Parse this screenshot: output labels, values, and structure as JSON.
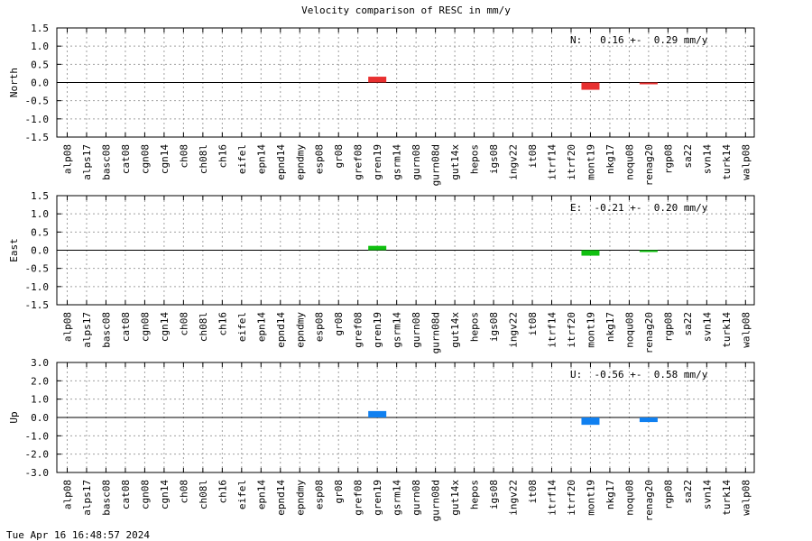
{
  "title": "Velocity comparison of RESC in mm/y",
  "footer": "Tue Apr 16 16:48:57 2024",
  "chart_data": [
    {
      "type": "bar",
      "ylabel": "North",
      "ylim": [
        -1.5,
        1.5
      ],
      "yticks": [
        "1.5",
        "1.0",
        "0.5",
        "0.0",
        "-0.5",
        "-1.0",
        "-1.5"
      ],
      "grid": true,
      "color": "#e83030",
      "annotation": "N:   0.16 +-  0.29 mm/y",
      "categories": [
        "alp08",
        "alps17",
        "basc08",
        "cat08",
        "cgn08",
        "cgn14",
        "ch08",
        "ch08l",
        "ch16",
        "eifel",
        "epn14",
        "epnd14",
        "epndmy",
        "esp08",
        "gr08",
        "gref08",
        "gren19",
        "gsrm14",
        "gurn08",
        "gurn08d",
        "gut14x",
        "hepos",
        "igs08",
        "ingv22",
        "it08",
        "itrf14",
        "itrf20",
        "mont19",
        "nkg17",
        "noqu08",
        "renag20",
        "rgp08",
        "sa22",
        "svn14",
        "turk14",
        "walp08"
      ],
      "values": {
        "gren19": 0.16,
        "mont19": -0.2,
        "renag20": -0.02
      }
    },
    {
      "type": "bar",
      "ylabel": "East",
      "ylim": [
        -1.5,
        1.5
      ],
      "yticks": [
        "1.5",
        "1.0",
        "0.5",
        "0.0",
        "-0.5",
        "-1.0",
        "-1.5"
      ],
      "grid": true,
      "color": "#10c010",
      "annotation": "E:  -0.21 +-  0.20 mm/y",
      "categories": [
        "alp08",
        "alps17",
        "basc08",
        "cat08",
        "cgn08",
        "cgn14",
        "ch08",
        "ch08l",
        "ch16",
        "eifel",
        "epn14",
        "epnd14",
        "epndmy",
        "esp08",
        "gr08",
        "gref08",
        "gren19",
        "gsrm14",
        "gurn08",
        "gurn08d",
        "gut14x",
        "hepos",
        "igs08",
        "ingv22",
        "it08",
        "itrf14",
        "itrf20",
        "mont19",
        "nkg17",
        "noqu08",
        "renag20",
        "rgp08",
        "sa22",
        "svn14",
        "turk14",
        "walp08"
      ],
      "values": {
        "gren19": 0.12,
        "mont19": -0.15,
        "renag20": -0.05
      }
    },
    {
      "type": "bar",
      "ylabel": "Up",
      "ylim": [
        -3.0,
        3.0
      ],
      "yticks": [
        "3.0",
        "2.0",
        "1.0",
        "0.0",
        "-1.0",
        "-2.0",
        "-3.0"
      ],
      "grid": true,
      "color": "#1080f0",
      "annotation": "U:  -0.56 +-  0.58 mm/y",
      "categories": [
        "alp08",
        "alps17",
        "basc08",
        "cat08",
        "cgn08",
        "cgn14",
        "ch08",
        "ch08l",
        "ch16",
        "eifel",
        "epn14",
        "epnd14",
        "epndmy",
        "esp08",
        "gr08",
        "gref08",
        "gren19",
        "gsrm14",
        "gurn08",
        "gurn08d",
        "gut14x",
        "hepos",
        "igs08",
        "ingv22",
        "it08",
        "itrf14",
        "itrf20",
        "mont19",
        "nkg17",
        "noqu08",
        "renag20",
        "rgp08",
        "sa22",
        "svn14",
        "turk14",
        "walp08"
      ],
      "values": {
        "gren19": 0.35,
        "mont19": -0.4,
        "renag20": -0.25
      }
    }
  ]
}
